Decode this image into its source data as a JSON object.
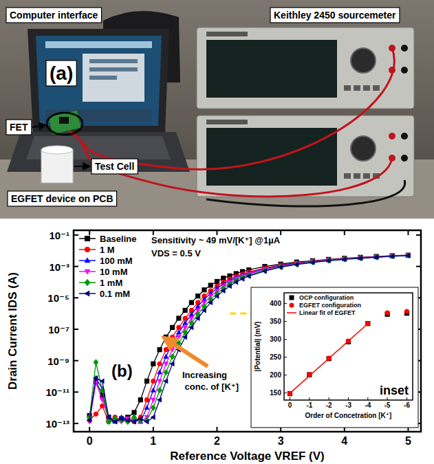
{
  "panel_a": {
    "letter": "(a)",
    "labels": [
      "Computer interface",
      "Keithley 2450 sourcemeter",
      "FET",
      "Test Cell",
      "EGFET device on PCB"
    ]
  },
  "chart_data": [
    {
      "type": "line",
      "panel_label": "(b)",
      "x_label": "Reference Voltage VREF (V)",
      "y_label": "Drain Current IDS (A)",
      "log": "y",
      "grid": false,
      "legend": "top-left",
      "xlim": [
        -0.25,
        5.2
      ],
      "xticks": [
        0,
        1,
        2,
        3,
        4,
        5
      ],
      "ylim": [
        3e-14,
        0.2
      ],
      "yticks": [
        {
          "value": 1e-13,
          "label": "10⁻¹³"
        },
        {
          "value": 1e-11,
          "label": "10⁻¹¹"
        },
        {
          "value": 1e-09,
          "label": "10⁻⁹"
        },
        {
          "value": 1e-07,
          "label": "10⁻⁷"
        },
        {
          "value": 1e-05,
          "label": "10⁻⁵"
        },
        {
          "value": 0.001,
          "label": "10⁻³"
        },
        {
          "value": 0.1,
          "label": "10⁻¹"
        }
      ],
      "annotations": [
        "Sensitivity ~ 49 mV/[K⁺] @1µA",
        "VDS = 0.5 V",
        "Increasing conc. of [K⁺]"
      ],
      "reference_line": {
        "value": 1e-06,
        "color": "#ffd700",
        "line_style": "dashed"
      },
      "x": [
        0,
        0.1,
        0.2,
        0.3,
        0.4,
        0.5,
        0.6,
        0.7,
        0.8,
        0.9,
        1.0,
        1.1,
        1.2,
        1.3,
        1.4,
        1.5,
        1.6,
        1.7,
        1.8,
        1.9,
        2.0,
        2.1,
        2.2,
        2.3,
        2.4,
        2.5,
        2.75,
        3.0,
        3.25,
        3.5,
        3.75,
        4.0,
        4.25,
        4.5,
        4.75,
        5.0
      ],
      "series": [
        {
          "name": "Baseline",
          "color": "#000000",
          "marker": "square",
          "values": [
            3.2e-13,
            5e-11,
            6.3e-12,
            2.5e-13,
            1.6e-13,
            2e-13,
            2.5e-13,
            5e-13,
            3.2e-12,
            5e-11,
            6.3e-10,
            5e-09,
            3.2e-08,
            1.3e-07,
            5e-07,
            1.6e-06,
            5e-06,
            1.3e-05,
            3.2e-05,
            6.3e-05,
            0.00011,
            0.00018,
            0.00025,
            0.00035,
            0.00047,
            0.0006,
            0.001,
            0.0014,
            0.0019,
            0.0023,
            0.0028,
            0.0033,
            0.0038,
            0.0043,
            0.0048,
            0.0052
          ]
        },
        {
          "name": "1 M",
          "color": "#ff0000",
          "marker": "circle",
          "values": [
            1.6e-13,
            4e-13,
            1.3e-12,
            1.3e-13,
            2.5e-13,
            1.6e-13,
            2e-13,
            1.3e-13,
            2.5e-13,
            3.2e-12,
            5e-11,
            6.3e-10,
            5e-09,
            3.2e-08,
            1.3e-07,
            5e-07,
            1.6e-06,
            5e-06,
            1.3e-05,
            2.8e-05,
            5.6e-05,
            0.0001,
            0.00016,
            0.00024,
            0.00033,
            0.00044,
            0.00079,
            0.0012,
            0.0017,
            0.0021,
            0.0026,
            0.0032,
            0.0036,
            0.0042,
            0.0047,
            0.0051
          ]
        },
        {
          "name": "100 mM",
          "color": "#0000ff",
          "marker": "triangle-up",
          "values": [
            2e-13,
            7.9e-11,
            1.6e-11,
            1.6e-13,
            1.3e-13,
            2.5e-13,
            1.6e-13,
            2e-13,
            1.3e-13,
            1e-12,
            1.3e-11,
            1.8e-10,
            1.8e-09,
            1.3e-08,
            6.3e-08,
            2.5e-07,
            8.9e-07,
            2.8e-06,
            7.9e-06,
            1.9e-05,
            4e-05,
            7.6e-05,
            0.00013,
            0.0002,
            0.00028,
            0.00038,
            0.00071,
            0.0011,
            0.0016,
            0.002,
            0.0025,
            0.003,
            0.0035,
            0.0041,
            0.0046,
            0.005
          ]
        },
        {
          "name": "10 mM",
          "color": "#ff00ff",
          "marker": "triangle-down",
          "values": [
            1.3e-13,
            4e-11,
            3.2e-12,
            2e-13,
            1.6e-13,
            1.3e-13,
            2e-13,
            1.6e-13,
            1.3e-13,
            2.5e-13,
            3.2e-12,
            5e-11,
            6.3e-10,
            5e-09,
            3.2e-08,
            1.3e-07,
            5e-07,
            1.6e-06,
            5e-06,
            1.3e-05,
            2.8e-05,
            5.6e-05,
            0.0001,
            0.00017,
            0.00024,
            0.00033,
            0.00063,
            0.001,
            0.0015,
            0.002,
            0.0025,
            0.003,
            0.0035,
            0.004,
            0.0045,
            0.005
          ]
        },
        {
          "name": "1 mM",
          "color": "#009900",
          "marker": "diamond",
          "values": [
            2.5e-13,
            7.9e-10,
            1.3e-11,
            1.3e-13,
            2e-13,
            1.6e-13,
            1.3e-13,
            2.5e-13,
            1.6e-13,
            1.6e-13,
            1e-12,
            1.3e-11,
            1.8e-10,
            1.8e-09,
            1.3e-08,
            6.3e-08,
            2.5e-07,
            8.9e-07,
            2.8e-06,
            7.9e-06,
            1.9e-05,
            4e-05,
            7.6e-05,
            0.00013,
            0.0002,
            0.00028,
            0.00056,
            0.00095,
            0.0014,
            0.0019,
            0.0024,
            0.0029,
            0.0034,
            0.0039,
            0.0045,
            0.0049
          ]
        },
        {
          "name": "0.1 mM",
          "color": "#000080",
          "marker": "triangle-left",
          "values": [
            1.6e-13,
            7.9e-11,
            5e-11,
            2.5e-13,
            1.3e-13,
            2e-13,
            1.6e-13,
            1.3e-13,
            2e-13,
            1.3e-13,
            2.5e-13,
            3.2e-12,
            5e-11,
            6.3e-10,
            5e-09,
            3.2e-08,
            1.3e-07,
            5e-07,
            1.6e-06,
            5e-06,
            1.3e-05,
            2.8e-05,
            5.6e-05,
            0.0001,
            0.00016,
            0.00024,
            0.0005,
            0.00089,
            0.0013,
            0.0018,
            0.0023,
            0.0028,
            0.0033,
            0.0038,
            0.0044,
            0.0049
          ]
        }
      ]
    },
    {
      "type": "scatter",
      "title": "inset",
      "x_label": "Order of Concetration [K⁺]",
      "y_label": "|Potential| (mV)",
      "grid": false,
      "legend": "top-left",
      "xlim": [
        0.3,
        -6.3
      ],
      "xticks": [
        0,
        -1,
        -2,
        -3,
        -4,
        -5,
        -6
      ],
      "ylim": [
        130,
        430
      ],
      "yticks": [
        150,
        200,
        250,
        300,
        350,
        400
      ],
      "series": [
        {
          "name": "OCP configuration",
          "color": "#000000",
          "marker": "square",
          "x": [
            0,
            -1,
            -2,
            -3,
            -4,
            -5,
            -6
          ],
          "values": [
            148,
            201,
            246,
            293,
            344,
            370,
            373
          ]
        },
        {
          "name": "EGFET configuration",
          "color": "#ff0000",
          "marker": "circle",
          "x": [
            0,
            -1,
            -2,
            -3,
            -4,
            -5,
            -6
          ],
          "values": [
            148,
            202,
            247,
            295,
            344,
            374,
            378
          ]
        },
        {
          "name": "Linear fit of EGFET",
          "type": "line",
          "color": "#ff0000",
          "marker": "none",
          "x": [
            0,
            -4
          ],
          "values": [
            149,
            344
          ]
        }
      ]
    }
  ]
}
